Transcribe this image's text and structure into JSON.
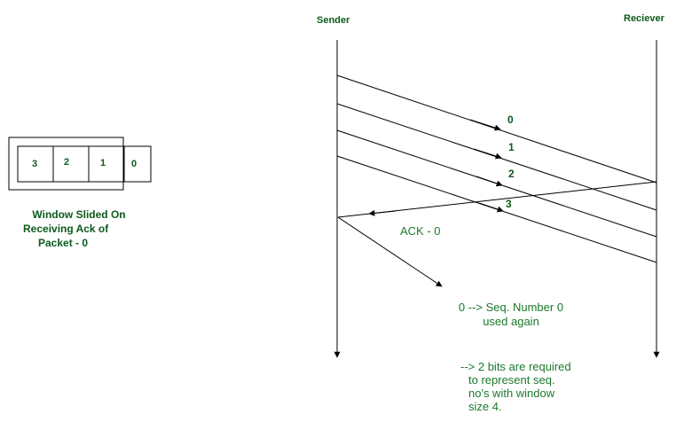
{
  "colors": {
    "text_dark_green": "#0b5a1b",
    "text_green": "#1b7a2c",
    "line": "#000000"
  },
  "timeline": {
    "sender_label": "Sender",
    "receiver_label": "Reciever"
  },
  "window": {
    "cells": [
      "3",
      "2",
      "1",
      "0"
    ],
    "caption_line1": "Window Slided On",
    "caption_line2": "Receiving Ack of",
    "caption_line3": "Packet - 0"
  },
  "packets": [
    {
      "label": "0"
    },
    {
      "label": "1"
    },
    {
      "label": "2"
    },
    {
      "label": "3"
    }
  ],
  "ack": {
    "label": "ACK - 0"
  },
  "notes": {
    "reuse_line1": "0 --> Seq. Number 0",
    "reuse_line2": "used again",
    "bits_line1": "--> 2 bits are required",
    "bits_line2": "to represent seq.",
    "bits_line3": "no's with window",
    "bits_line4": "size 4."
  }
}
